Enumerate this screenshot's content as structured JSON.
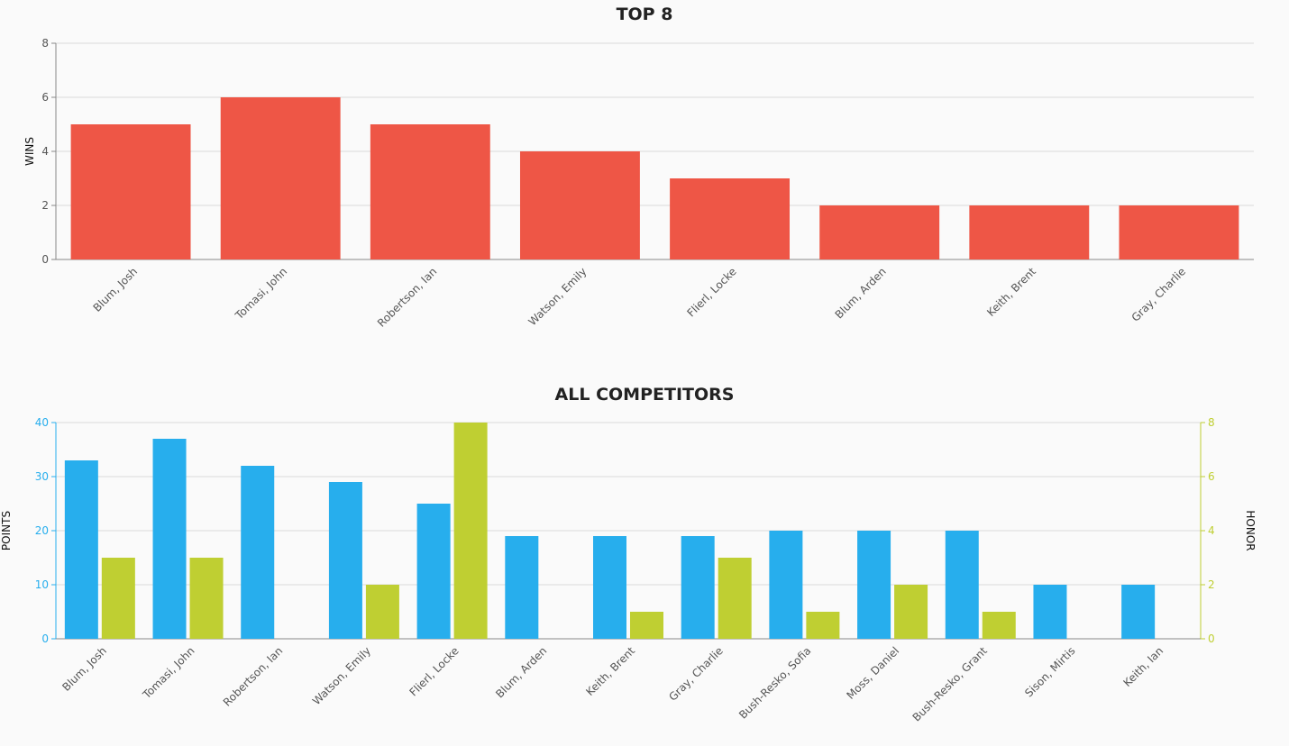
{
  "chart_data": [
    {
      "type": "bar",
      "title": "TOP 8",
      "categories": [
        "Blum, Josh",
        "Tomasi, John",
        "Robertson, Ian",
        "Watson, Emily",
        "Flierl, Locke",
        "Blum, Arden",
        "Keith, Brent",
        "Gray, Charlie"
      ],
      "series": [
        {
          "values": [
            5,
            6,
            5,
            4,
            3,
            2,
            2,
            2
          ]
        }
      ],
      "ylabel": "WINS",
      "ylim": [
        0,
        8
      ],
      "yticks": [
        0,
        2,
        4,
        6,
        8
      ],
      "grid": true,
      "colors": {
        "bar": "#ee5646"
      }
    },
    {
      "type": "bar",
      "title": "ALL COMPETITORS",
      "categories": [
        "Blum, Josh",
        "Tomasi, John",
        "Robertson, Ian",
        "Watson, Emily",
        "Flierl, Locke",
        "Blum, Arden",
        "Keith, Brent",
        "Gray, Charlie",
        "Bush-Resko, Sofia",
        "Moss, Daniel",
        "Bush-Resko, Grant",
        "Sison, Mirtis",
        "Keith, Ian"
      ],
      "series": [
        {
          "axis": "left",
          "values": [
            33,
            37,
            32,
            29,
            25,
            19,
            19,
            19,
            20,
            20,
            20,
            10,
            10
          ]
        },
        {
          "axis": "right",
          "values": [
            3,
            3,
            0,
            2,
            8,
            0,
            1,
            3,
            1,
            2,
            1,
            0,
            0
          ]
        }
      ],
      "ylabel": "POINTS",
      "ylabel_right": "HONOR",
      "ylim": [
        0,
        40
      ],
      "ylim_right": [
        0,
        8
      ],
      "yticks": [
        0,
        10,
        20,
        30,
        40
      ],
      "yticks_right": [
        0,
        2,
        4,
        6,
        8
      ],
      "grid": true,
      "colors": {
        "left": "#27aeed",
        "right": "#bfcf32"
      }
    }
  ]
}
